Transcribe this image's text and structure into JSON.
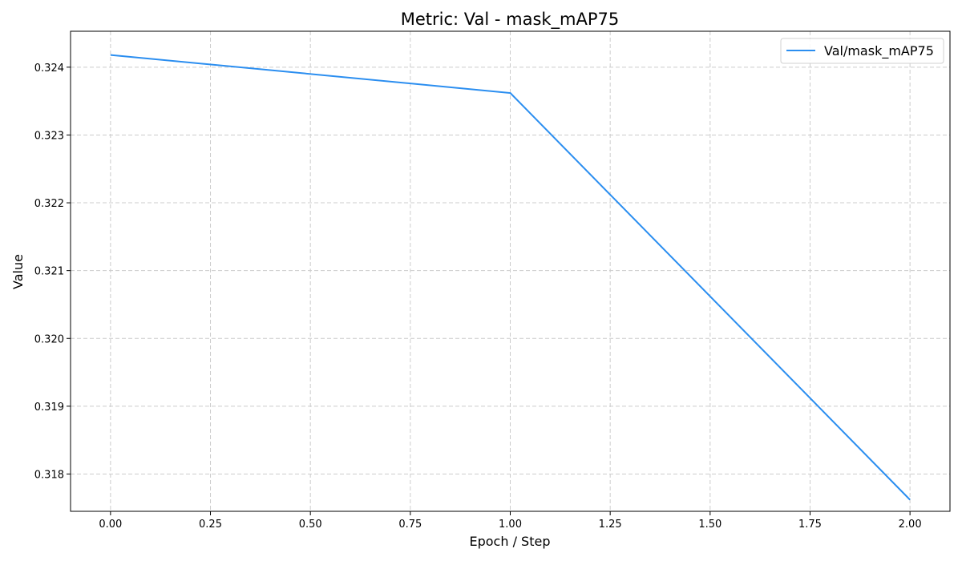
{
  "chart_data": {
    "type": "line",
    "title": "Metric: Val - mask_mAP75",
    "xlabel": "Epoch / Step",
    "ylabel": "Value",
    "xlim": [
      -0.1,
      2.1
    ],
    "ylim": [
      0.31745,
      0.32453
    ],
    "x_ticks": [
      0.0,
      0.25,
      0.5,
      0.75,
      1.0,
      1.25,
      1.5,
      1.75,
      2.0
    ],
    "x_tick_labels": [
      "0.00",
      "0.25",
      "0.50",
      "0.75",
      "1.00",
      "1.25",
      "1.50",
      "1.75",
      "2.00"
    ],
    "y_ticks": [
      0.318,
      0.319,
      0.32,
      0.321,
      0.322,
      0.323,
      0.324
    ],
    "y_tick_labels": [
      "0.318",
      "0.319",
      "0.320",
      "0.321",
      "0.322",
      "0.323",
      "0.324"
    ],
    "grid": true,
    "legend_position": "top-right",
    "series": [
      {
        "name": "Val/mask_mAP75",
        "color": "#2b8ef0",
        "x": [
          0,
          1,
          2
        ],
        "y": [
          0.32418,
          0.32362,
          0.31762
        ]
      }
    ]
  }
}
